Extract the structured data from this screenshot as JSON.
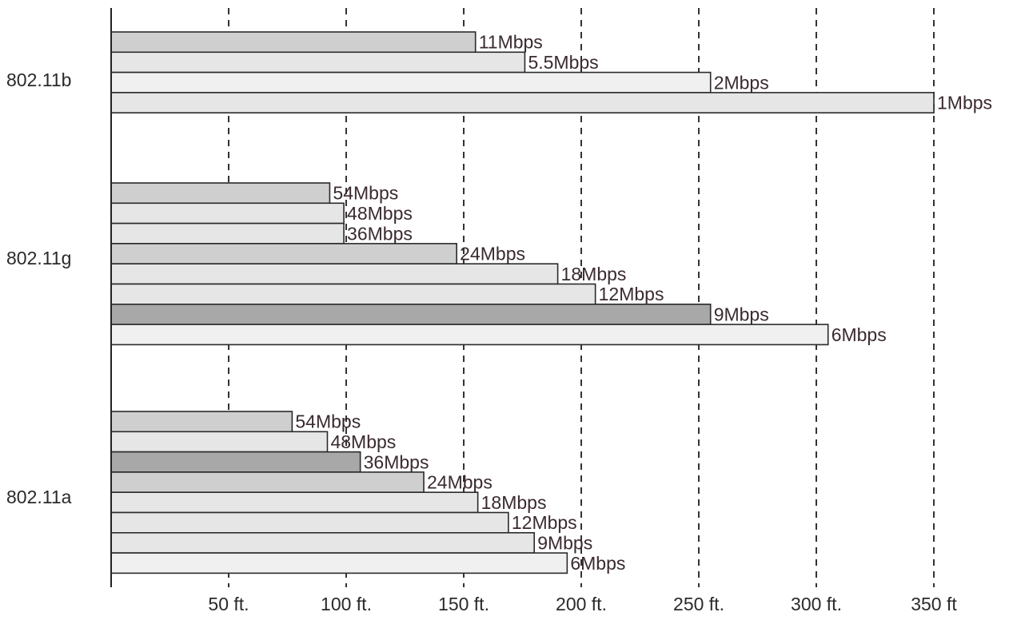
{
  "chart_data": {
    "type": "bar",
    "orientation": "horizontal",
    "title": "",
    "xlabel": "",
    "ylabel": "",
    "xlim": [
      0,
      350
    ],
    "grid": true,
    "x_ticks": [
      {
        "value": 50,
        "label": "50 ft."
      },
      {
        "value": 100,
        "label": "100 ft."
      },
      {
        "value": 150,
        "label": "150 ft."
      },
      {
        "value": 200,
        "label": "200 ft."
      },
      {
        "value": 250,
        "label": "250 ft."
      },
      {
        "value": 300,
        "label": "300 ft."
      },
      {
        "value": 350,
        "label": "350 ft"
      }
    ],
    "groups": [
      {
        "label": "802.11b",
        "bars": [
          {
            "label": "11Mbps",
            "value": 155,
            "fill": "#cfcfcf"
          },
          {
            "label": "5.5Mbps",
            "value": 176,
            "fill": "#e6e6e6"
          },
          {
            "label": "2Mbps",
            "value": 255,
            "fill": "#f0f0f0"
          },
          {
            "label": "1Mbps",
            "value": 350,
            "fill": "#e6e6e6"
          }
        ]
      },
      {
        "label": "802.11g",
        "bars": [
          {
            "label": "54Mbps",
            "value": 93,
            "fill": "#cfcfcf"
          },
          {
            "label": "48Mbps",
            "value": 99,
            "fill": "#e6e6e6"
          },
          {
            "label": "36Mbps",
            "value": 99,
            "fill": "#e6e6e6"
          },
          {
            "label": "24Mbps",
            "value": 147,
            "fill": "#cfcfcf"
          },
          {
            "label": "18Mbps",
            "value": 190,
            "fill": "#e6e6e6"
          },
          {
            "label": "12Mbps",
            "value": 206,
            "fill": "#e6e6e6"
          },
          {
            "label": "9Mbps",
            "value": 255,
            "fill": "#a8a8a8"
          },
          {
            "label": "6Mbps",
            "value": 305,
            "fill": "#f0f0f0"
          }
        ]
      },
      {
        "label": "802.11a",
        "bars": [
          {
            "label": "54Mbps",
            "value": 77,
            "fill": "#cfcfcf"
          },
          {
            "label": "48Mbps",
            "value": 92,
            "fill": "#e6e6e6"
          },
          {
            "label": "36Mbps",
            "value": 106,
            "fill": "#a8a8a8"
          },
          {
            "label": "24Mbps",
            "value": 133,
            "fill": "#cfcfcf"
          },
          {
            "label": "18Mbps",
            "value": 156,
            "fill": "#e6e6e6"
          },
          {
            "label": "12Mbps",
            "value": 169,
            "fill": "#e6e6e6"
          },
          {
            "label": "9Mbps",
            "value": 180,
            "fill": "#e6e6e6"
          },
          {
            "label": "6Mbps",
            "value": 194,
            "fill": "#f0f0f0"
          }
        ]
      }
    ]
  }
}
